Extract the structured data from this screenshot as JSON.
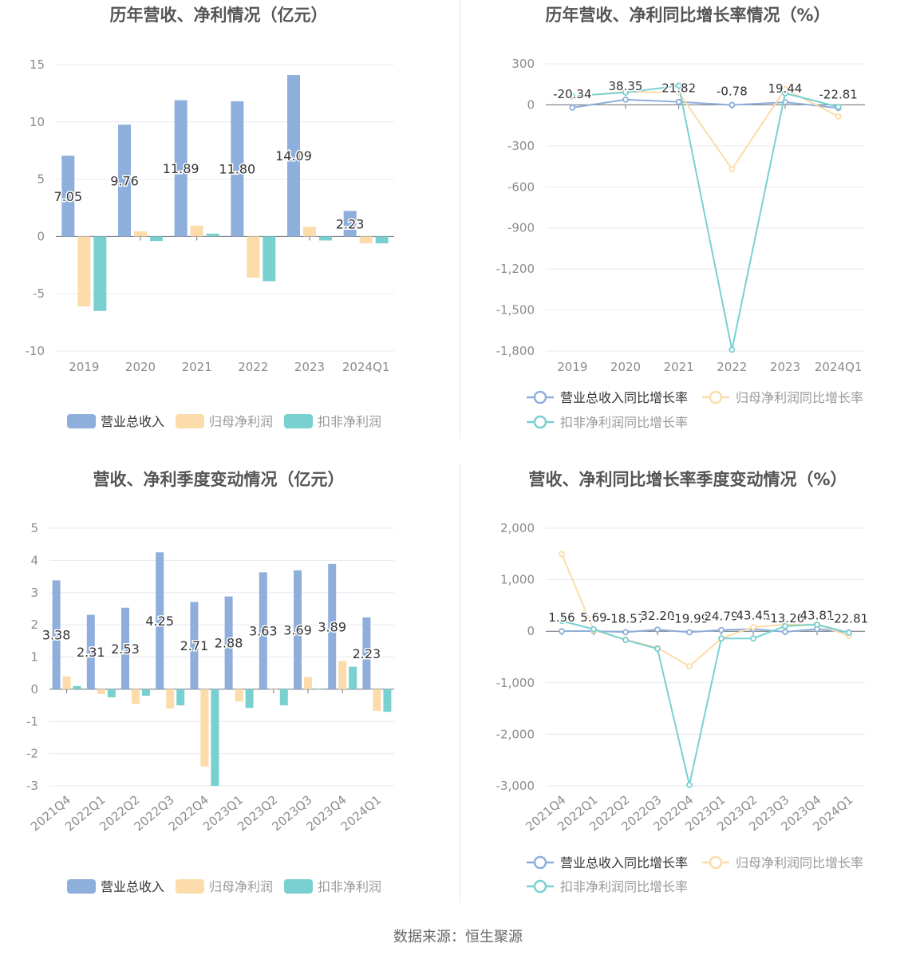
{
  "source": "数据来源：恒生聚源",
  "colors": {
    "revenue": "#8eaedb",
    "net_profit": "#fcdcaa",
    "deducted_profit": "#79d0d1",
    "grid": "#e6e9f2",
    "axis_text": "#8c8c8c",
    "title": "#555555"
  },
  "chart_data": [
    {
      "type": "bar",
      "title": "历年营收、净利情况（亿元）",
      "categories": [
        "2019",
        "2020",
        "2021",
        "2022",
        "2023",
        "2024Q1"
      ],
      "ylim": [
        -10,
        15
      ],
      "yticks": [
        "-10",
        "-5",
        "0",
        "5",
        "10",
        "15"
      ],
      "series": [
        {
          "name": "营业总收入",
          "values": [
            7.05,
            9.76,
            11.89,
            11.8,
            14.09,
            2.23
          ],
          "labels": [
            "7.05",
            "9.76",
            "11.89",
            "11.80",
            "14.09",
            "2.23"
          ]
        },
        {
          "name": "归母净利润",
          "values": [
            -6.1,
            0.45,
            0.95,
            -3.6,
            0.85,
            -0.6
          ]
        },
        {
          "name": "扣非净利润",
          "values": [
            -6.5,
            -0.4,
            0.25,
            -3.9,
            -0.35,
            -0.6
          ]
        }
      ],
      "legend": "bottom",
      "grid": true
    },
    {
      "type": "line",
      "title": "历年营收、净利同比增长率情况（%）",
      "categories": [
        "2019",
        "2020",
        "2021",
        "2022",
        "2023",
        "2024Q1"
      ],
      "ylim": [
        -1800,
        300
      ],
      "yticks": [
        "-1,800",
        "-1,500",
        "-1,200",
        "-900",
        "-600",
        "-300",
        "0",
        "300"
      ],
      "series": [
        {
          "name": "营业总收入同比增长率",
          "values": [
            -20.34,
            38.35,
            21.82,
            -0.78,
            19.44,
            -22.81
          ],
          "labels": [
            "-20.34",
            "38.35",
            "21.82",
            "-0.78",
            "19.44",
            "-22.81"
          ]
        },
        {
          "name": "归母净利润同比增长率",
          "values": [
            60,
            95,
            90,
            -470,
            115,
            -85
          ]
        },
        {
          "name": "扣非净利润同比增长率",
          "values": [
            65,
            90,
            140,
            -1790,
            85,
            -15
          ]
        }
      ],
      "legend": "bottom",
      "grid": true
    },
    {
      "type": "bar",
      "title": "营收、净利季度变动情况（亿元）",
      "categories": [
        "2021Q4",
        "2022Q1",
        "2022Q2",
        "2022Q3",
        "2022Q4",
        "2023Q1",
        "2023Q2",
        "2023Q3",
        "2023Q4",
        "2024Q1"
      ],
      "ylim": [
        -3,
        5
      ],
      "yticks": [
        "-3",
        "-2",
        "-1",
        "0",
        "1",
        "2",
        "3",
        "4",
        "5"
      ],
      "series": [
        {
          "name": "营业总收入",
          "values": [
            3.38,
            2.31,
            2.53,
            4.25,
            2.71,
            2.88,
            3.63,
            3.69,
            3.89,
            2.23
          ],
          "labels": [
            "3.38",
            "2.31",
            "2.53",
            "4.25",
            "2.71",
            "2.88",
            "3.63",
            "3.69",
            "3.89",
            "2.23"
          ]
        },
        {
          "name": "归母净利润",
          "values": [
            0.4,
            -0.15,
            -0.45,
            -0.6,
            -2.4,
            -0.38,
            0.0,
            0.38,
            0.88,
            -0.67
          ]
        },
        {
          "name": "扣非净利润",
          "values": [
            0.1,
            -0.25,
            -0.2,
            -0.5,
            -3.0,
            -0.58,
            -0.5,
            0.0,
            0.7,
            -0.7
          ]
        }
      ],
      "legend": "bottom",
      "grid": true
    },
    {
      "type": "line",
      "title": "营收、净利同比增长率季度变动情况（%）",
      "categories": [
        "2021Q4",
        "2022Q1",
        "2022Q2",
        "2022Q3",
        "2022Q4",
        "2023Q1",
        "2023Q2",
        "2023Q3",
        "2023Q4",
        "2024Q1"
      ],
      "ylim": [
        -3000,
        2000
      ],
      "yticks": [
        "-3,000",
        "-2,000",
        "-1,000",
        "0",
        "1,000",
        "2,000"
      ],
      "series": [
        {
          "name": "营业总收入同比增长率",
          "values": [
            1.56,
            5.69,
            -18.57,
            32.2,
            -19.99,
            24.79,
            43.45,
            -13.26,
            43.81,
            -22.81
          ],
          "labels": [
            "1.56",
            "5.69",
            "-18.57",
            "32.20",
            "-19.99",
            "24.79",
            "43.45",
            "-13.26",
            "43.81",
            "-22.81"
          ]
        },
        {
          "name": "归母净利润同比增长率",
          "values": [
            1500,
            20,
            -160,
            -320,
            -680,
            -140,
            80,
            130,
            130,
            -90
          ]
        },
        {
          "name": "扣非净利润同比增长率",
          "values": [
            200,
            40,
            -170,
            -340,
            -2980,
            -140,
            -140,
            100,
            130,
            -30
          ]
        }
      ],
      "legend": "bottom",
      "grid": true
    }
  ]
}
